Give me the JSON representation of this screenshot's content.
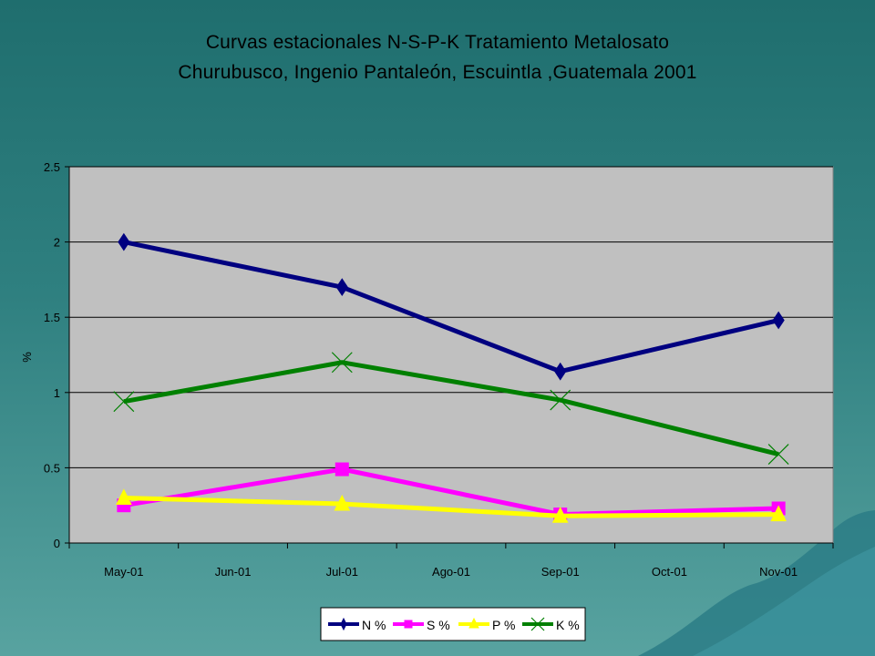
{
  "slide": {
    "title_line1": "Curvas estacionales N-S-P-K  Tratamiento Metalosato",
    "title_line2": "Churubusco, Ingenio Pantaleón, Escuintla ,Guatemala 2001"
  },
  "chart_data": {
    "type": "line",
    "title": "Curvas estacionales N-S-P-K  Tratamiento Metalosato / Churubusco, Ingenio Pantaleón, Escuintla ,Guatemala 2001",
    "categories": [
      "May-01",
      "Jun-01",
      "Jul-01",
      "Ago-01",
      "Sep-01",
      "Oct-01",
      "Nov-01"
    ],
    "xlabel": "",
    "ylabel": "%",
    "ylim": [
      0,
      2.5
    ],
    "yticks": [
      "0",
      "0.5",
      "1",
      "1.5",
      "2",
      "2.5"
    ],
    "grid": "horizontal",
    "legend_position": "bottom",
    "series": [
      {
        "name": "N %",
        "color": "#000080",
        "marker": "diamond",
        "values": [
          2.0,
          null,
          1.7,
          null,
          1.14,
          null,
          1.48
        ]
      },
      {
        "name": "S %",
        "color": "#ff00ff",
        "marker": "square",
        "values": [
          0.25,
          null,
          0.49,
          null,
          0.19,
          null,
          0.23
        ]
      },
      {
        "name": "P %",
        "color": "#ffff00",
        "marker": "triangle",
        "values": [
          0.3,
          null,
          0.26,
          null,
          0.18,
          null,
          0.19
        ]
      },
      {
        "name": "K %",
        "color": "#008000",
        "marker": "x",
        "values": [
          0.94,
          null,
          1.2,
          null,
          0.95,
          null,
          0.59
        ]
      }
    ]
  }
}
